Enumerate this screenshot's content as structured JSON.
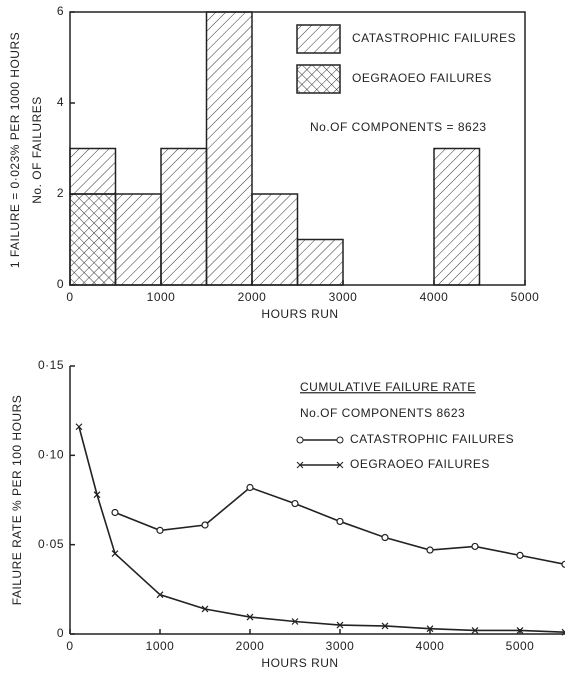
{
  "chart_data": [
    {
      "type": "histogram",
      "ylabel_note": "1 FAILURE = 0·023% PER 1000 HOURS",
      "ylabel": "No. OF FAILURES",
      "xlabel": "HOURS RUN",
      "annotation": "No.OF COMPONENTS = 8623",
      "bins": [
        0,
        500,
        1000,
        1500,
        2000,
        2500,
        3000,
        3500,
        4000,
        4500
      ],
      "stacked": true,
      "series": [
        {
          "name": "OEGRAOEO FAILURES",
          "color": "#222",
          "hatch": "cross",
          "values": [
            2,
            0,
            0,
            0,
            0,
            0,
            0,
            0,
            0
          ]
        },
        {
          "name": "CATASTROPHIC FAILURES",
          "color": "#222",
          "hatch": "diagonal",
          "values": [
            1,
            2,
            3,
            6,
            2,
            1,
            0,
            0,
            3
          ]
        }
      ],
      "xlim": [
        0,
        5000
      ],
      "xticks": [
        0,
        1000,
        2000,
        3000,
        4000,
        5000
      ],
      "ylim": [
        0,
        6
      ],
      "yticks": [
        0,
        2,
        4,
        6
      ],
      "grid": false
    },
    {
      "type": "line",
      "title": "CUMULATIVE FAILURE RATE",
      "annotation": "No.OF COMPONENTS 8623",
      "ylabel": "FAILURE RATE % PER 100 HOURS",
      "xlabel": "HOURS RUN",
      "series": [
        {
          "name": "CATASTROPHIC FAILURES",
          "color": "#222",
          "marker": "circle",
          "x": [
            500,
            1000,
            1500,
            2000,
            2500,
            3000,
            3500,
            4000,
            4500,
            5000,
            5500
          ],
          "values": [
            0.068,
            0.058,
            0.061,
            0.082,
            0.073,
            0.063,
            0.054,
            0.047,
            0.049,
            0.044,
            0.039
          ]
        },
        {
          "name": "OEGRAOEO FAILURES",
          "color": "#222",
          "marker": "x",
          "x": [
            100,
            300,
            500,
            1000,
            1500,
            2000,
            2500,
            3000,
            3500,
            4000,
            4500,
            5000,
            5500
          ],
          "values": [
            0.116,
            0.078,
            0.045,
            0.022,
            0.014,
            0.0095,
            0.007,
            0.005,
            0.0045,
            0.003,
            0.002,
            0.002,
            0.001
          ]
        }
      ],
      "xlim": [
        0,
        5500
      ],
      "xticks": [
        0,
        1000,
        2000,
        3000,
        4000,
        5000
      ],
      "ylim": [
        0,
        0.15
      ],
      "yticks": [
        {
          "value": 0,
          "label": "0"
        },
        {
          "value": 0.05,
          "label": "0·05"
        },
        {
          "value": 0.1,
          "label": "0·10"
        },
        {
          "value": 0.15,
          "label": "0·15"
        }
      ],
      "grid": false
    }
  ]
}
